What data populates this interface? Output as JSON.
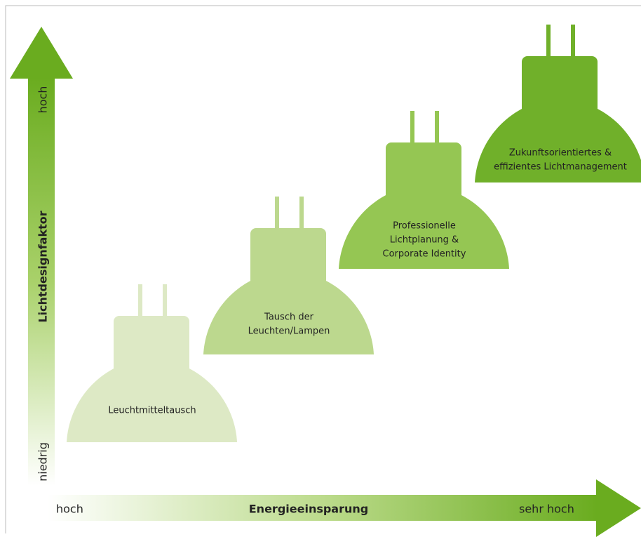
{
  "y_axis": {
    "title": "Lichtdesignfaktor",
    "high": "hoch",
    "low": "niedrig"
  },
  "x_axis": {
    "title": "Energieeinsparung",
    "low": "hoch",
    "high": "sehr hoch"
  },
  "lamps": [
    {
      "lines": [
        "Leuchtmitteltausch"
      ]
    },
    {
      "lines": [
        "Tausch der",
        "Leuchten/Lampen"
      ]
    },
    {
      "lines": [
        "Professionelle",
        "Lichtplanung &",
        "Corporate Identity"
      ]
    },
    {
      "lines": [
        "Zukunftsorientiertes &",
        "effizientes Lichtmanagement"
      ]
    }
  ]
}
